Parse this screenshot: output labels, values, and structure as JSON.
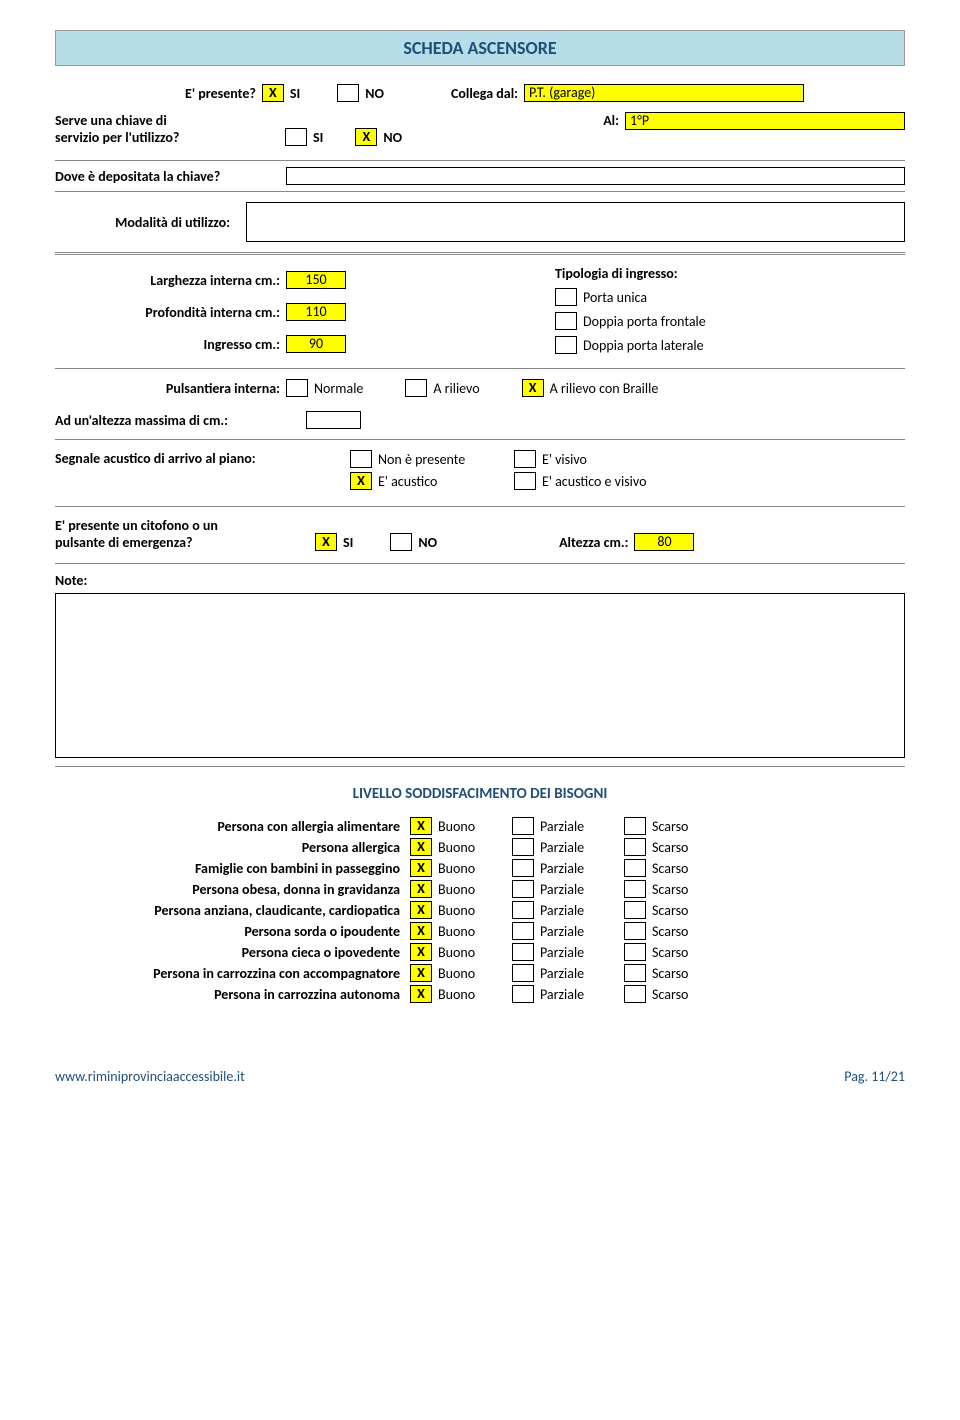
{
  "header": "SCHEDA ASCENSORE",
  "r1": {
    "q": "E' presente?",
    "si_mark": "X",
    "si": "SI",
    "no_mark": "",
    "no": "NO",
    "collega": "Collega dal:",
    "collega_val": "P.T. (garage)"
  },
  "r2": {
    "q1": "Serve una chiave di",
    "q2": "servizio per l'utilizzo?",
    "si_mark": "",
    "si": "SI",
    "no_mark": "X",
    "no": "NO",
    "al": "Al:",
    "al_val": "1°P"
  },
  "r3": {
    "q": "Dove è depositata la chiave?",
    "val": ""
  },
  "r4": {
    "q": "Modalità di utilizzo:",
    "val": ""
  },
  "dims": {
    "larg": "Larghezza interna cm.:",
    "larg_v": "150",
    "prof": "Profondità interna cm.:",
    "prof_v": "110",
    "ingr": "Ingresso cm.:",
    "ingr_v": "90",
    "tip": "Tipologia di ingresso:",
    "opt1": "Porta unica",
    "opt2": "Doppia porta frontale",
    "opt3": "Doppia porta laterale"
  },
  "puls": {
    "q": "Pulsantiera interna:",
    "o1": "Normale",
    "o2": "A rilievo",
    "o3_mark": "X",
    "o3": "A rilievo con Braille"
  },
  "alt": {
    "q": "Ad un'altezza massima di cm.:",
    "val": ""
  },
  "segn": {
    "q": "Segnale acustico di arrivo al piano:",
    "o1": "Non è presente",
    "o2_mark": "X",
    "o2": "E' acustico",
    "o3": "E' visivo",
    "o4": "E' acustico e visivo"
  },
  "cit": {
    "q1": "E' presente un citofono o un",
    "q2": "pulsante di emergenza?",
    "si_mark": "X",
    "si": "SI",
    "no_mark": "",
    "no": "NO",
    "alt": "Altezza cm.:",
    "alt_v": "80"
  },
  "notes": "Note:",
  "livello": {
    "title": "LIVELLO SODDISFACIMENTO DEI BISOGNI",
    "cols": {
      "b": "Buono",
      "p": "Parziale",
      "s": "Scarso"
    },
    "rows": [
      {
        "label": "Persona con allergia alimentare",
        "mark": "X"
      },
      {
        "label": "Persona allergica",
        "mark": "X"
      },
      {
        "label": "Famiglie con bambini in passeggino",
        "mark": "X"
      },
      {
        "label": "Persona obesa, donna in gravidanza",
        "mark": "X"
      },
      {
        "label": "Persona anziana, claudicante, cardiopatica",
        "mark": "X"
      },
      {
        "label": "Persona sorda o ipoudente",
        "mark": "X"
      },
      {
        "label": "Persona cieca o ipovedente",
        "mark": "X"
      },
      {
        "label": "Persona in carrozzina con accompagnatore",
        "mark": "X"
      },
      {
        "label": "Persona in carrozzina autonoma",
        "mark": "X"
      }
    ]
  },
  "footer": {
    "url": "www.riminiprovinciaaccessibile.it",
    "page": "Pag. 11/21"
  }
}
